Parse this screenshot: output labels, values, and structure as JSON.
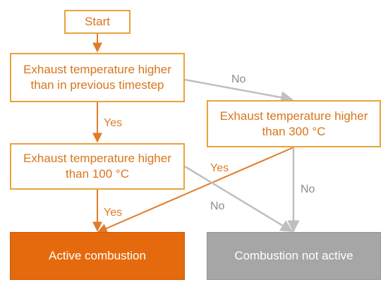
{
  "nodes": {
    "start": "Start",
    "exhaust_higher_than_previous": "Exhaust temperature higher\nthan in previous timestep",
    "exhaust_higher_than_300": "Exhaust temperature higher\nthan 300 °C",
    "exhaust_higher_than_100": "Exhaust temperature higher\nthan 100 °C",
    "active_combustion": "Active combustion",
    "combustion_not_active": "Combustion not active"
  },
  "edge_labels": {
    "previous_no": "No",
    "previous_yes": "Yes",
    "t300_yes": "Yes",
    "t300_no": "No",
    "t100_yes": "Yes",
    "t100_no": "No"
  },
  "colors": {
    "orange_accent": "#e56a0d",
    "orange_text": "#d9751a",
    "box_border": "#e8a33a",
    "gray_fill": "#a6a6a6",
    "gray_connector": "#bfbfbf",
    "orange_connector": "#e07b28",
    "gray_label": "#8c8c8c"
  }
}
